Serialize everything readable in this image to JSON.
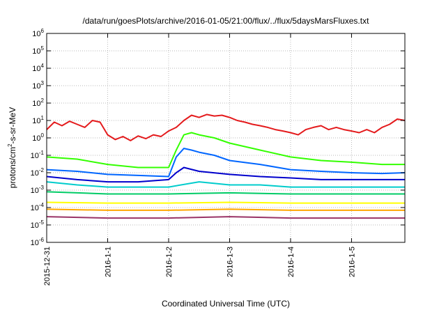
{
  "chart_data": {
    "type": "line",
    "title": "/data/run/goesPlots/archive/2016-01-05/21:00/flux/../flux/5daysMarsFluxes.txt",
    "xlabel": "Coordinated Universal Time (UTC)",
    "ylabel_base": "protons/cm",
    "ylabel_exp": "2",
    "ylabel_rest": "-s-sr-MeV",
    "x_scale": "time",
    "xlim": [
      "2015-12-31T00:00",
      "2016-01-05T21:00"
    ],
    "x_ticks": [
      {
        "value": "2015-12-31T00:00",
        "label": "2015-12-31"
      },
      {
        "value": "2016-01-01T00:00",
        "label": "2016-1-1"
      },
      {
        "value": "2016-01-02T00:00",
        "label": "2016-1-2"
      },
      {
        "value": "2016-01-03T00:00",
        "label": "2016-1-3"
      },
      {
        "value": "2016-01-04T00:00",
        "label": "2016-1-4"
      },
      {
        "value": "2016-01-05T00:00",
        "label": "2016-1-5"
      }
    ],
    "y_scale": "log",
    "ylim": [
      1e-06,
      1000000.0
    ],
    "y_ticks": [
      {
        "value": 1e-06,
        "base": "10",
        "exp": "-6"
      },
      {
        "value": 1e-05,
        "base": "10",
        "exp": "-5"
      },
      {
        "value": 0.0001,
        "base": "10",
        "exp": "-4"
      },
      {
        "value": 0.001,
        "base": "10",
        "exp": "-3"
      },
      {
        "value": 0.01,
        "base": "10",
        "exp": "-2"
      },
      {
        "value": 0.1,
        "base": "10",
        "exp": "-1"
      },
      {
        "value": 1,
        "base": "10",
        "exp": "0"
      },
      {
        "value": 10,
        "base": "10",
        "exp": "1"
      },
      {
        "value": 100,
        "base": "10",
        "exp": "2"
      },
      {
        "value": 1000,
        "base": "10",
        "exp": "3"
      },
      {
        "value": 10000,
        "base": "10",
        "exp": "4"
      },
      {
        "value": 100000,
        "base": "10",
        "exp": "5"
      },
      {
        "value": 1000000,
        "base": "10",
        "exp": "6"
      }
    ],
    "grid": true,
    "legend": "none",
    "series": [
      {
        "color": "#e41a1c",
        "points": [
          [
            "2015-12-31T00:00",
            3
          ],
          [
            "2015-12-31T03:00",
            8
          ],
          [
            "2015-12-31T06:00",
            5
          ],
          [
            "2015-12-31T09:00",
            9
          ],
          [
            "2015-12-31T12:00",
            6
          ],
          [
            "2015-12-31T15:00",
            4
          ],
          [
            "2015-12-31T18:00",
            10
          ],
          [
            "2015-12-31T21:00",
            8
          ],
          [
            "2016-01-01T00:00",
            1.5
          ],
          [
            "2016-01-01T03:00",
            0.8
          ],
          [
            "2016-01-01T06:00",
            1.2
          ],
          [
            "2016-01-01T09:00",
            0.7
          ],
          [
            "2016-01-01T12:00",
            1.3
          ],
          [
            "2016-01-01T15:00",
            0.9
          ],
          [
            "2016-01-01T18:00",
            1.5
          ],
          [
            "2016-01-01T21:00",
            1.2
          ],
          [
            "2016-01-02T00:00",
            2.5
          ],
          [
            "2016-01-02T03:00",
            4
          ],
          [
            "2016-01-02T06:00",
            10
          ],
          [
            "2016-01-02T09:00",
            20
          ],
          [
            "2016-01-02T12:00",
            15
          ],
          [
            "2016-01-02T15:00",
            22
          ],
          [
            "2016-01-02T18:00",
            18
          ],
          [
            "2016-01-02T21:00",
            20
          ],
          [
            "2016-01-03T00:00",
            15
          ],
          [
            "2016-01-03T03:00",
            10
          ],
          [
            "2016-01-03T06:00",
            8
          ],
          [
            "2016-01-03T09:00",
            6
          ],
          [
            "2016-01-03T12:00",
            5
          ],
          [
            "2016-01-03T15:00",
            4
          ],
          [
            "2016-01-03T18:00",
            3
          ],
          [
            "2016-01-03T21:00",
            2.5
          ],
          [
            "2016-01-04T00:00",
            2
          ],
          [
            "2016-01-04T03:00",
            1.5
          ],
          [
            "2016-01-04T06:00",
            3
          ],
          [
            "2016-01-04T09:00",
            4
          ],
          [
            "2016-01-04T12:00",
            5
          ],
          [
            "2016-01-04T15:00",
            3
          ],
          [
            "2016-01-04T18:00",
            4
          ],
          [
            "2016-01-04T21:00",
            3
          ],
          [
            "2016-01-05T00:00",
            2.5
          ],
          [
            "2016-01-05T03:00",
            2
          ],
          [
            "2016-01-05T06:00",
            3
          ],
          [
            "2016-01-05T09:00",
            2
          ],
          [
            "2016-01-05T12:00",
            4
          ],
          [
            "2016-01-05T15:00",
            6
          ],
          [
            "2016-01-05T18:00",
            12
          ],
          [
            "2016-01-05T21:00",
            10
          ]
        ]
      },
      {
        "color": "#33ff00",
        "points": [
          [
            "2015-12-31T00:00",
            0.08
          ],
          [
            "2015-12-31T12:00",
            0.06
          ],
          [
            "2016-01-01T00:00",
            0.03
          ],
          [
            "2016-01-01T12:00",
            0.02
          ],
          [
            "2016-01-02T00:00",
            0.02
          ],
          [
            "2016-01-02T03:00",
            0.2
          ],
          [
            "2016-01-02T06:00",
            1.5
          ],
          [
            "2016-01-02T09:00",
            2
          ],
          [
            "2016-01-02T12:00",
            1.5
          ],
          [
            "2016-01-02T18:00",
            1
          ],
          [
            "2016-01-03T00:00",
            0.5
          ],
          [
            "2016-01-03T12:00",
            0.2
          ],
          [
            "2016-01-04T00:00",
            0.08
          ],
          [
            "2016-01-04T12:00",
            0.05
          ],
          [
            "2016-01-05T00:00",
            0.04
          ],
          [
            "2016-01-05T12:00",
            0.03
          ],
          [
            "2016-01-05T21:00",
            0.03
          ]
        ]
      },
      {
        "color": "#0066ff",
        "points": [
          [
            "2015-12-31T00:00",
            0.015
          ],
          [
            "2015-12-31T12:00",
            0.012
          ],
          [
            "2016-01-01T00:00",
            0.008
          ],
          [
            "2016-01-01T12:00",
            0.007
          ],
          [
            "2016-01-02T00:00",
            0.006
          ],
          [
            "2016-01-02T03:00",
            0.08
          ],
          [
            "2016-01-02T06:00",
            0.25
          ],
          [
            "2016-01-02T09:00",
            0.2
          ],
          [
            "2016-01-02T12:00",
            0.15
          ],
          [
            "2016-01-02T18:00",
            0.1
          ],
          [
            "2016-01-03T00:00",
            0.05
          ],
          [
            "2016-01-03T12:00",
            0.03
          ],
          [
            "2016-01-04T00:00",
            0.015
          ],
          [
            "2016-01-04T12:00",
            0.012
          ],
          [
            "2016-01-05T00:00",
            0.01
          ],
          [
            "2016-01-05T12:00",
            0.009
          ],
          [
            "2016-01-05T21:00",
            0.01
          ]
        ]
      },
      {
        "color": "#0000cc",
        "points": [
          [
            "2015-12-31T00:00",
            0.006
          ],
          [
            "2015-12-31T12:00",
            0.004
          ],
          [
            "2016-01-01T00:00",
            0.003
          ],
          [
            "2016-01-01T12:00",
            0.003
          ],
          [
            "2016-01-02T00:00",
            0.004
          ],
          [
            "2016-01-02T03:00",
            0.01
          ],
          [
            "2016-01-02T06:00",
            0.02
          ],
          [
            "2016-01-02T12:00",
            0.012
          ],
          [
            "2016-01-03T00:00",
            0.008
          ],
          [
            "2016-01-03T12:00",
            0.006
          ],
          [
            "2016-01-04T00:00",
            0.005
          ],
          [
            "2016-01-04T12:00",
            0.004
          ],
          [
            "2016-01-05T00:00",
            0.004
          ],
          [
            "2016-01-05T12:00",
            0.004
          ],
          [
            "2016-01-05T21:00",
            0.004
          ]
        ]
      },
      {
        "color": "#00cccc",
        "points": [
          [
            "2015-12-31T00:00",
            0.003
          ],
          [
            "2015-12-31T12:00",
            0.002
          ],
          [
            "2016-01-01T00:00",
            0.0015
          ],
          [
            "2016-01-01T12:00",
            0.0015
          ],
          [
            "2016-01-02T00:00",
            0.0015
          ],
          [
            "2016-01-02T12:00",
            0.003
          ],
          [
            "2016-01-03T00:00",
            0.002
          ],
          [
            "2016-01-03T12:00",
            0.002
          ],
          [
            "2016-01-04T00:00",
            0.0015
          ],
          [
            "2016-01-04T12:00",
            0.0015
          ],
          [
            "2016-01-05T00:00",
            0.0015
          ],
          [
            "2016-01-05T21:00",
            0.0015
          ]
        ]
      },
      {
        "color": "#00cc66",
        "points": [
          [
            "2015-12-31T00:00",
            0.0008
          ],
          [
            "2015-12-31T12:00",
            0.0007
          ],
          [
            "2016-01-01T00:00",
            0.0006
          ],
          [
            "2016-01-02T00:00",
            0.0006
          ],
          [
            "2016-01-03T00:00",
            0.0007
          ],
          [
            "2016-01-04T00:00",
            0.0006
          ],
          [
            "2016-01-05T00:00",
            0.0006
          ],
          [
            "2016-01-05T21:00",
            0.0006
          ]
        ]
      },
      {
        "color": "#ffff00",
        "points": [
          [
            "2015-12-31T00:00",
            0.0002
          ],
          [
            "2016-01-01T00:00",
            0.00018
          ],
          [
            "2016-01-02T00:00",
            0.00018
          ],
          [
            "2016-01-03T00:00",
            0.0002
          ],
          [
            "2016-01-04T00:00",
            0.00018
          ],
          [
            "2016-01-05T00:00",
            0.00018
          ],
          [
            "2016-01-05T21:00",
            0.00018
          ]
        ]
      },
      {
        "color": "#ffa500",
        "points": [
          [
            "2015-12-31T00:00",
            8e-05
          ],
          [
            "2016-01-01T00:00",
            7e-05
          ],
          [
            "2016-01-02T00:00",
            7e-05
          ],
          [
            "2016-01-03T00:00",
            8e-05
          ],
          [
            "2016-01-04T00:00",
            7e-05
          ],
          [
            "2016-01-05T00:00",
            7e-05
          ],
          [
            "2016-01-05T21:00",
            7e-05
          ]
        ]
      },
      {
        "color": "#993366",
        "points": [
          [
            "2015-12-31T00:00",
            3e-05
          ],
          [
            "2016-01-01T00:00",
            2.5e-05
          ],
          [
            "2016-01-02T00:00",
            2.5e-05
          ],
          [
            "2016-01-03T00:00",
            3e-05
          ],
          [
            "2016-01-04T00:00",
            2.5e-05
          ],
          [
            "2016-01-05T00:00",
            2.5e-05
          ],
          [
            "2016-01-05T21:00",
            2.5e-05
          ]
        ]
      }
    ]
  }
}
